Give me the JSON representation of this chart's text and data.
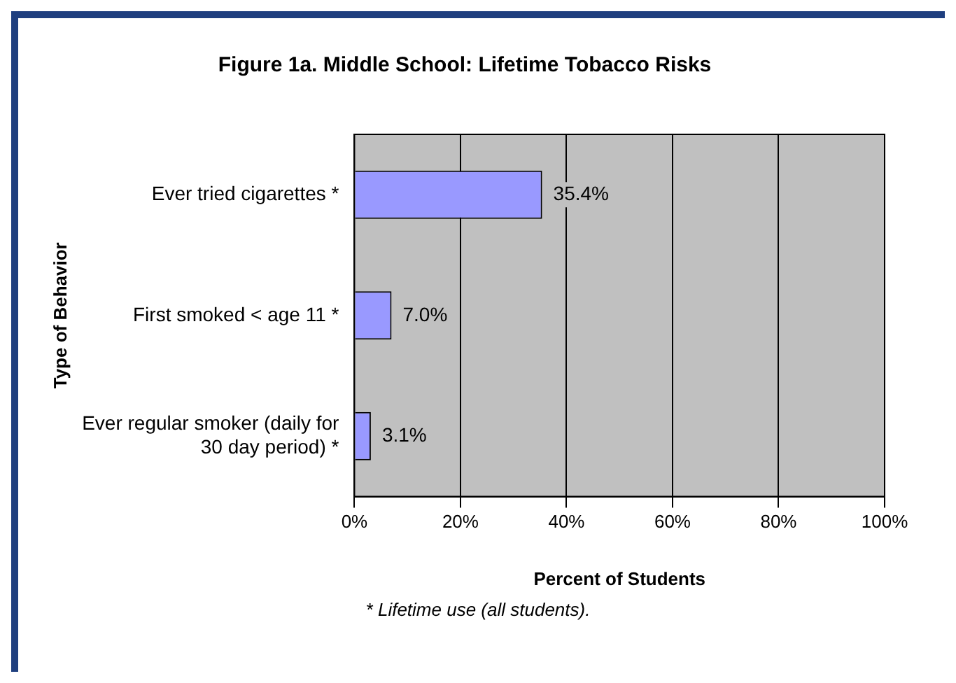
{
  "chart_data": {
    "type": "bar",
    "orientation": "horizontal",
    "title": "Figure 1a. Middle School: Lifetime Tobacco Risks",
    "xlabel": "Percent of Students",
    "ylabel": "Type of Behavior",
    "annotations": [
      "* Lifetime use (all students)."
    ],
    "categories": [
      "Ever tried cigarettes *",
      "First smoked < age 11 *",
      "Ever regular smoker (daily for 30 day period) *"
    ],
    "values": [
      35.4,
      7.0,
      3.1
    ],
    "value_labels": [
      "35.4%",
      "7.0%",
      "3.1%"
    ],
    "color": "#9999ff",
    "xlim": [
      0,
      100
    ],
    "xticks": [
      {
        "value": 0,
        "label": "0%"
      },
      {
        "value": 20,
        "label": "20%"
      },
      {
        "value": 40,
        "label": "40%"
      },
      {
        "value": 60,
        "label": "60%"
      },
      {
        "value": 80,
        "label": "80%"
      },
      {
        "value": 100,
        "label": "100%"
      }
    ],
    "grid": "x",
    "legend": false
  }
}
